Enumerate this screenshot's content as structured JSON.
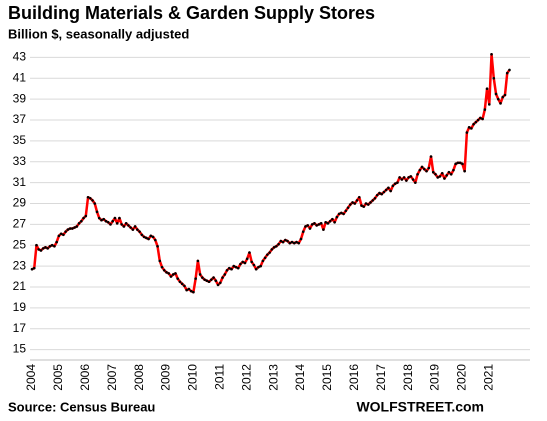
{
  "chart_data": {
    "type": "line",
    "title": "Building Materials & Garden Supply Stores",
    "subtitle": "Billion $, seasonally adjusted",
    "source": "Source: Census Bureau",
    "brand": "WOLFSTREET.com",
    "categories": [
      "2004",
      null,
      null,
      null,
      null,
      null,
      null,
      null,
      null,
      null,
      null,
      null,
      "2005",
      null,
      null,
      null,
      null,
      null,
      null,
      null,
      null,
      null,
      null,
      null,
      "2006",
      null,
      null,
      null,
      null,
      null,
      null,
      null,
      null,
      null,
      null,
      null,
      "2007",
      null,
      null,
      null,
      null,
      null,
      null,
      null,
      null,
      null,
      null,
      null,
      "2008",
      null,
      null,
      null,
      null,
      null,
      null,
      null,
      null,
      null,
      null,
      null,
      "2009",
      null,
      null,
      null,
      null,
      null,
      null,
      null,
      null,
      null,
      null,
      null,
      "2010",
      null,
      null,
      null,
      null,
      null,
      null,
      null,
      null,
      null,
      null,
      null,
      "2011",
      null,
      null,
      null,
      null,
      null,
      null,
      null,
      null,
      null,
      null,
      null,
      "2012",
      null,
      null,
      null,
      null,
      null,
      null,
      null,
      null,
      null,
      null,
      null,
      "2013",
      null,
      null,
      null,
      null,
      null,
      null,
      null,
      null,
      null,
      null,
      null,
      "2014",
      null,
      null,
      null,
      null,
      null,
      null,
      null,
      null,
      null,
      null,
      null,
      "2015",
      null,
      null,
      null,
      null,
      null,
      null,
      null,
      null,
      null,
      null,
      null,
      "2016",
      null,
      null,
      null,
      null,
      null,
      null,
      null,
      null,
      null,
      null,
      null,
      "2017",
      null,
      null,
      null,
      null,
      null,
      null,
      null,
      null,
      null,
      null,
      null,
      "2018",
      null,
      null,
      null,
      null,
      null,
      null,
      null,
      null,
      null,
      null,
      null,
      "2019",
      null,
      null,
      null,
      null,
      null,
      null,
      null,
      null,
      null,
      null,
      null,
      "2020",
      null,
      null,
      null,
      null,
      null,
      null,
      null,
      null,
      null,
      null,
      null,
      "2021",
      null,
      null,
      null,
      null,
      null,
      null,
      null,
      null,
      null
    ],
    "values": [
      22.7,
      22.8,
      25.0,
      24.6,
      24.5,
      24.7,
      24.8,
      24.7,
      24.9,
      25.0,
      24.9,
      25.3,
      25.9,
      26.1,
      26.0,
      26.3,
      26.5,
      26.6,
      26.6,
      26.7,
      26.8,
      27.1,
      27.3,
      27.6,
      27.8,
      29.6,
      29.5,
      29.3,
      29.0,
      28.2,
      27.6,
      27.4,
      27.5,
      27.3,
      27.2,
      27.0,
      27.3,
      27.6,
      27.1,
      27.6,
      27.0,
      26.8,
      27.1,
      26.9,
      26.7,
      26.5,
      26.8,
      26.5,
      26.3,
      26.0,
      25.8,
      25.7,
      25.6,
      25.9,
      25.8,
      25.5,
      24.9,
      23.5,
      22.9,
      22.6,
      22.4,
      22.3,
      22.0,
      22.2,
      22.3,
      21.8,
      21.5,
      21.3,
      21.1,
      20.7,
      20.8,
      20.6,
      20.5,
      21.8,
      23.5,
      22.2,
      21.9,
      21.7,
      21.6,
      21.5,
      21.7,
      21.9,
      21.6,
      21.2,
      21.4,
      21.9,
      22.2,
      22.6,
      22.8,
      22.7,
      23.0,
      22.9,
      22.8,
      23.2,
      23.4,
      23.3,
      23.7,
      24.3,
      23.4,
      23.1,
      22.7,
      22.9,
      23.0,
      23.5,
      23.8,
      24.1,
      24.3,
      24.6,
      24.8,
      24.9,
      25.1,
      25.4,
      25.3,
      25.5,
      25.4,
      25.2,
      25.3,
      25.2,
      25.3,
      25.2,
      25.6,
      26.3,
      26.8,
      26.9,
      26.6,
      27.0,
      27.1,
      26.9,
      27.0,
      27.1,
      26.5,
      27.2,
      27.1,
      27.3,
      27.5,
      27.2,
      27.7,
      28.0,
      28.1,
      28.0,
      28.3,
      28.6,
      28.9,
      29.1,
      29.0,
      29.3,
      29.6,
      28.8,
      28.7,
      29.0,
      28.9,
      29.1,
      29.3,
      29.5,
      29.8,
      30.0,
      29.9,
      30.1,
      30.3,
      30.5,
      30.2,
      30.7,
      30.9,
      31.0,
      31.5,
      31.3,
      31.5,
      31.2,
      31.5,
      31.6,
      31.3,
      31.0,
      31.8,
      32.2,
      32.5,
      32.3,
      32.1,
      32.4,
      33.5,
      32.0,
      31.8,
      31.5,
      31.6,
      31.9,
      31.4,
      31.7,
      32.0,
      31.8,
      32.2,
      32.8,
      32.9,
      32.9,
      32.8,
      32.1,
      35.8,
      36.3,
      36.2,
      36.6,
      36.8,
      37.0,
      37.2,
      37.1,
      38.0,
      40.0,
      38.5,
      43.3,
      41.0,
      39.5,
      39.0,
      38.6,
      39.2,
      39.4,
      41.5,
      41.8
    ],
    "color": "#ff0000",
    "marker_color": "#000000",
    "ylim": [
      14,
      44
    ],
    "yticks": [
      15,
      17,
      19,
      21,
      23,
      25,
      27,
      29,
      31,
      33,
      35,
      37,
      39,
      41,
      43
    ],
    "grid": true
  }
}
